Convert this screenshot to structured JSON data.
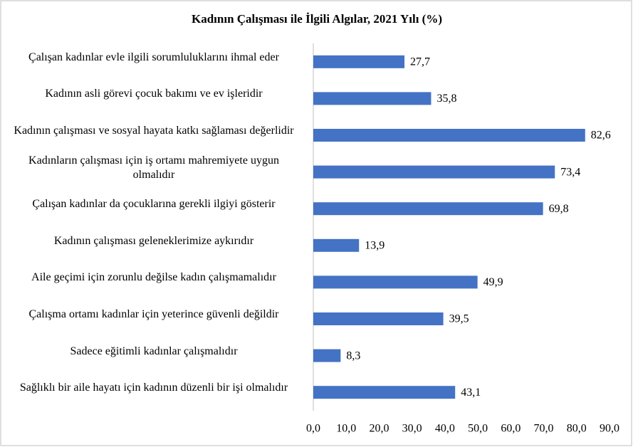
{
  "chart_data": {
    "type": "barh",
    "title": "Kadının Çalışması ile İlgili Algılar, 2021 Yılı (%)",
    "categories": [
      "Çalışan kadınlar evle ilgili sorumluluklarını ihmal eder",
      "Kadının asli görevi çocuk bakımı ve ev işleridir",
      "Kadının çalışması ve sosyal hayata katkı sağlaması değerlidir",
      "Kadınların çalışması için iş ortamı mahremiyete uygun olmalıdır",
      "Çalışan kadınlar da çocuklarına gerekli ilgiyi gösterir",
      "Kadının çalışması geleneklerimize aykırıdır",
      "Aile geçimi için zorunlu değilse kadın çalışmamalıdır",
      "Çalışma ortamı kadınlar için yeterince güvenli değildir",
      "Sadece eğitimli kadınlar çalışmalıdır",
      "Sağlıklı bir aile hayatı için kadının düzenli bir işi olmalıdır"
    ],
    "values": [
      27.7,
      35.8,
      82.6,
      73.4,
      69.8,
      13.9,
      49.9,
      39.5,
      8.3,
      43.1
    ],
    "value_labels": [
      "27,7",
      "35,8",
      "82,6",
      "73,4",
      "69,8",
      "13,9",
      "49,9",
      "39,5",
      "8,3",
      "43,1"
    ],
    "color": "#4472c4",
    "xlim": [
      0,
      90
    ],
    "xticks": [
      {
        "value": 0,
        "label": "0,0"
      },
      {
        "value": 10,
        "label": "10,0"
      },
      {
        "value": 20,
        "label": "20,0"
      },
      {
        "value": 30,
        "label": "30,0"
      },
      {
        "value": 40,
        "label": "40,0"
      },
      {
        "value": 50,
        "label": "50,0"
      },
      {
        "value": 60,
        "label": "60,0"
      },
      {
        "value": 70,
        "label": "70,0"
      },
      {
        "value": 80,
        "label": "80,0"
      },
      {
        "value": 90,
        "label": "90,0"
      }
    ],
    "grid": false
  }
}
